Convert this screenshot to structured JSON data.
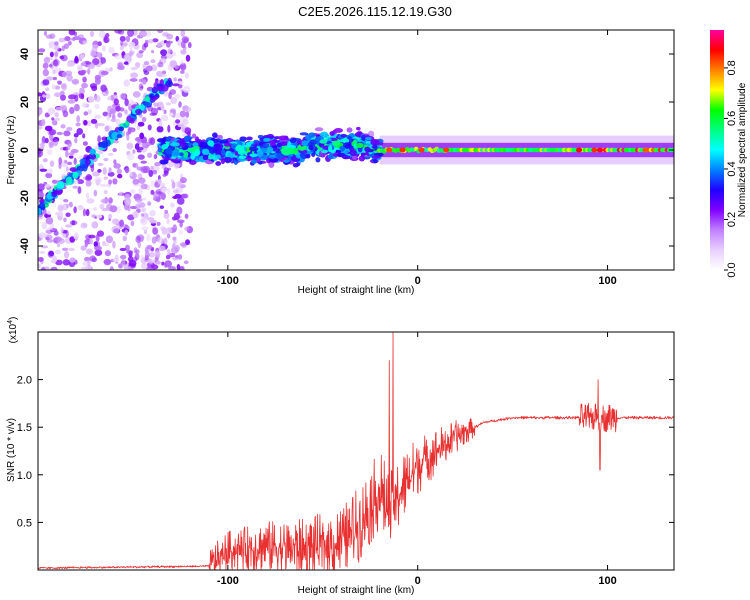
{
  "title": "C2E5.2026.115.12.19.G30",
  "chart_data": [
    {
      "type": "heatmap",
      "id": "spectrogram",
      "xlabel": "Height of straight line (km)",
      "ylabel": "Frequency (Hz)",
      "xlim": [
        -200,
        135
      ],
      "ylim": [
        -50,
        50
      ],
      "xticks": [
        -100,
        0,
        100
      ],
      "yticks": [
        -40,
        -20,
        0,
        20,
        40
      ],
      "colorbar": {
        "label": "Normalized spectral amplitude",
        "range": [
          0.0,
          0.95
        ],
        "ticks": [
          0.0,
          0.2,
          0.4,
          0.6,
          0.8
        ],
        "colors": [
          "#ffffff",
          "#e8d0ff",
          "#c080ff",
          "#8000ff",
          "#2000ff",
          "#0080ff",
          "#00ffff",
          "#00ff80",
          "#00ff00",
          "#ffff00",
          "#ff8000",
          "#ff0000",
          "#ff00a0"
        ]
      },
      "features": [
        {
          "name": "scattered noise",
          "x_range": [
            -200,
            -120
          ],
          "freq_range": [
            -50,
            50
          ],
          "amplitude": 0.15
        },
        {
          "name": "diagonal trace",
          "x_points": [
            -200,
            -130
          ],
          "freq_points": [
            -25,
            30
          ],
          "amplitude": 0.3
        },
        {
          "name": "noisy band",
          "x_range": [
            -135,
            -20
          ],
          "freq_center": 0,
          "freq_halfwidth": 6,
          "amplitude": 0.45
        },
        {
          "name": "clean line",
          "x_range": [
            -20,
            135
          ],
          "freq_center": 0,
          "freq_halfwidth": 1.5,
          "amplitude": 0.65
        }
      ]
    },
    {
      "type": "line",
      "id": "snr",
      "xlabel": "Height of straight line (km)",
      "ylabel": "SNR (10 * v/v)",
      "scale_label": "(x10",
      "scale_exp": "4",
      "xlim": [
        -200,
        135
      ],
      "ylim": [
        0,
        2.5
      ],
      "xticks": [
        -100,
        0,
        100
      ],
      "yticks": [
        0.5,
        1.0,
        1.5,
        2.0
      ],
      "color": "#e83030",
      "profile": [
        {
          "x": -200,
          "y": 0.02
        },
        {
          "x": -110,
          "y": 0.04
        },
        {
          "x": -100,
          "y": 0.2
        },
        {
          "x": -80,
          "y": 0.25
        },
        {
          "x": -60,
          "y": 0.22
        },
        {
          "x": -40,
          "y": 0.3
        },
        {
          "x": -30,
          "y": 0.5
        },
        {
          "x": -20,
          "y": 0.85
        },
        {
          "x": -15,
          "y": 0.6
        },
        {
          "x": -10,
          "y": 0.8
        },
        {
          "x": 0,
          "y": 1.1
        },
        {
          "x": 10,
          "y": 1.25
        },
        {
          "x": 20,
          "y": 1.4
        },
        {
          "x": 35,
          "y": 1.55
        },
        {
          "x": 50,
          "y": 1.6
        },
        {
          "x": 135,
          "y": 1.6
        }
      ],
      "spikes": [
        {
          "x": -13,
          "y": 2.5
        },
        {
          "x": -15,
          "y": 2.2
        },
        {
          "x": 95,
          "y": 2.0
        },
        {
          "x": 96,
          "y": 1.05
        }
      ]
    }
  ]
}
